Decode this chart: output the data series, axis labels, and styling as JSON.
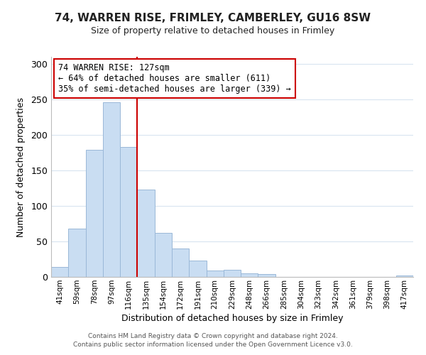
{
  "title": "74, WARREN RISE, FRIMLEY, CAMBERLEY, GU16 8SW",
  "subtitle": "Size of property relative to detached houses in Frimley",
  "xlabel": "Distribution of detached houses by size in Frimley",
  "ylabel": "Number of detached properties",
  "bar_labels": [
    "41sqm",
    "59sqm",
    "78sqm",
    "97sqm",
    "116sqm",
    "135sqm",
    "154sqm",
    "172sqm",
    "191sqm",
    "210sqm",
    "229sqm",
    "248sqm",
    "266sqm",
    "285sqm",
    "304sqm",
    "323sqm",
    "342sqm",
    "361sqm",
    "379sqm",
    "398sqm",
    "417sqm"
  ],
  "bar_values": [
    14,
    68,
    179,
    246,
    183,
    123,
    62,
    40,
    23,
    9,
    10,
    5,
    4,
    0,
    0,
    0,
    0,
    0,
    0,
    0,
    2
  ],
  "bar_color": "#c9ddf2",
  "bar_edge_color": "#9ab8d8",
  "vline_x": 4.5,
  "vline_color": "#cc0000",
  "annotation_title": "74 WARREN RISE: 127sqm",
  "annotation_line1": "← 64% of detached houses are smaller (611)",
  "annotation_line2": "35% of semi-detached houses are larger (339) →",
  "annotation_box_color": "white",
  "annotation_box_edge": "#cc0000",
  "ylim": [
    0,
    310
  ],
  "yticks": [
    0,
    50,
    100,
    150,
    200,
    250,
    300
  ],
  "footnote1": "Contains HM Land Registry data © Crown copyright and database right 2024.",
  "footnote2": "Contains public sector information licensed under the Open Government Licence v3.0.",
  "bg_color": "#ffffff",
  "grid_color": "#d8e4f0"
}
